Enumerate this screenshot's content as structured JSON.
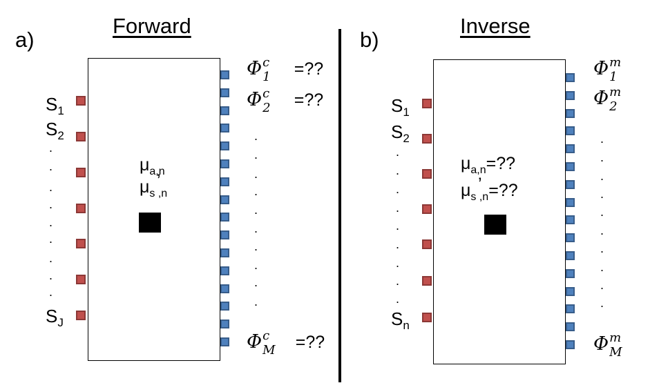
{
  "panels": {
    "forward": {
      "letter": "a)",
      "title": "Forward",
      "sources": [
        "S",
        "S",
        "S"
      ],
      "source_subs": [
        "1",
        "2",
        "J"
      ],
      "property1": {
        "mu": "μ",
        "sub": "a,n",
        "value": ""
      },
      "property2": {
        "mu": "μ",
        "prime": "’",
        "sub": "s ,n",
        "value": ""
      },
      "phi_top": [
        {
          "symbol": "Φ",
          "sup": "c",
          "sub": "1",
          "value": "=??"
        },
        {
          "symbol": "Φ",
          "sup": "c",
          "sub": "2",
          "value": "=??"
        }
      ],
      "phi_bottom": {
        "symbol": "Φ",
        "sup": "c",
        "sub": "M",
        "value": "=??"
      },
      "dot": "."
    },
    "inverse": {
      "letter": "b)",
      "title": "Inverse",
      "sources": [
        "S",
        "S",
        "S"
      ],
      "source_subs": [
        "1",
        "2",
        "n"
      ],
      "property1": {
        "mu": "μ",
        "sub": "a,n",
        "value": "=??"
      },
      "property2": {
        "mu": "μ",
        "prime": "’",
        "sub": "s ,n",
        "value": "=??"
      },
      "phi_top": [
        {
          "symbol": "Φ",
          "sup": "m",
          "sub": "1",
          "value": ""
        },
        {
          "symbol": "Φ",
          "sup": "m",
          "sub": "2",
          "value": ""
        }
      ],
      "phi_bottom": {
        "symbol": "Φ",
        "sup": "m",
        "sub": "M",
        "value": ""
      },
      "dot": "."
    }
  },
  "colors": {
    "source": "#c0504d",
    "detector": "#4f81bd",
    "target": "#000000"
  }
}
